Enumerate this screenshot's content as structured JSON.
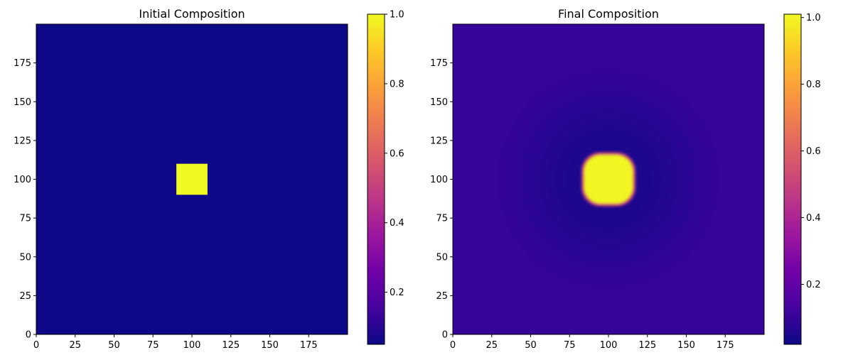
{
  "chart_data": [
    {
      "type": "heatmap",
      "title": "Initial Composition",
      "xlabel": "",
      "ylabel": "",
      "xlim": [
        0,
        200
      ],
      "ylim": [
        0,
        200
      ],
      "x_ticks": [
        "0",
        "25",
        "50",
        "75",
        "100",
        "125",
        "150",
        "175"
      ],
      "y_ticks": [
        "0",
        "25",
        "50",
        "75",
        "100",
        "125",
        "150",
        "175"
      ],
      "grid": false,
      "colormap": "plasma",
      "background_value": 0.05,
      "features": [
        {
          "shape": "square",
          "x_range": [
            90,
            110
          ],
          "y_range": [
            90,
            110
          ],
          "value": 1.0
        }
      ],
      "colorbar": {
        "range": [
          0.05,
          1.0
        ],
        "ticks": [
          "0.2",
          "0.4",
          "0.6",
          "0.8",
          "1.0"
        ]
      }
    },
    {
      "type": "heatmap",
      "title": "Final Composition",
      "xlabel": "",
      "ylabel": "",
      "xlim": [
        0,
        200
      ],
      "ylim": [
        0,
        200
      ],
      "x_ticks": [
        "0",
        "25",
        "50",
        "75",
        "100",
        "125",
        "150",
        "175"
      ],
      "y_ticks": [
        "0",
        "25",
        "50",
        "75",
        "100",
        "125",
        "150",
        "175"
      ],
      "grid": false,
      "colormap": "plasma",
      "background_value": 0.1,
      "features": [
        {
          "shape": "rounded-square",
          "center": [
            100,
            100
          ],
          "half_width": 16,
          "value": 1.0,
          "depletion_halo_value": 0.04
        }
      ],
      "colorbar": {
        "range": [
          0.02,
          1.01
        ],
        "ticks": [
          "0.2",
          "0.4",
          "0.6",
          "0.8",
          "1.0"
        ]
      }
    }
  ],
  "colors": {
    "plasma_stops": [
      "#0d0887",
      "#46039f",
      "#7201a8",
      "#9c179e",
      "#bd3786",
      "#d8576b",
      "#ed7953",
      "#fb9f3a",
      "#fdca26",
      "#f0f921"
    ]
  }
}
